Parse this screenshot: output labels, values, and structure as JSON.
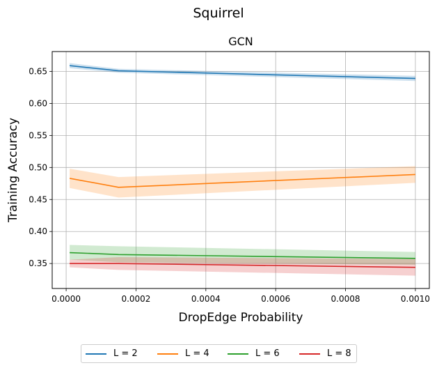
{
  "suptitle": "Squirrel",
  "chart_data": {
    "type": "line",
    "title": "GCN",
    "xlabel": "DropEdge Probability",
    "ylabel": "Training Accuracy",
    "xlim": [
      -4e-05,
      0.00104
    ],
    "ylim": [
      0.311,
      0.681
    ],
    "xticks": [
      0.0,
      0.0002,
      0.0004,
      0.0006,
      0.0008,
      0.001
    ],
    "xtick_labels": [
      "0.0000",
      "0.0002",
      "0.0004",
      "0.0006",
      "0.0008",
      "0.0010"
    ],
    "yticks": [
      0.35,
      0.4,
      0.45,
      0.5,
      0.55,
      0.6,
      0.65
    ],
    "ytick_labels": [
      "0.35",
      "0.40",
      "0.45",
      "0.50",
      "0.55",
      "0.60",
      "0.65"
    ],
    "grid": true,
    "legend_position": "bottom-center",
    "x": [
      1e-05,
      0.00015,
      0.001
    ],
    "series": [
      {
        "name": "L = 2",
        "color": "#1f77b4",
        "values": [
          0.659,
          0.651,
          0.639
        ],
        "lower": [
          0.655,
          0.648,
          0.635
        ],
        "upper": [
          0.663,
          0.654,
          0.643
        ]
      },
      {
        "name": "L = 4",
        "color": "#ff7f0e",
        "values": [
          0.483,
          0.469,
          0.489
        ],
        "lower": [
          0.468,
          0.453,
          0.476
        ],
        "upper": [
          0.498,
          0.485,
          0.502
        ]
      },
      {
        "name": "L = 6",
        "color": "#2ca02c",
        "values": [
          0.367,
          0.364,
          0.358
        ],
        "lower": [
          0.356,
          0.352,
          0.348
        ],
        "upper": [
          0.379,
          0.377,
          0.368
        ]
      },
      {
        "name": "L = 8",
        "color": "#d62728",
        "values": [
          0.35,
          0.35,
          0.344
        ],
        "lower": [
          0.344,
          0.34,
          0.331
        ],
        "upper": [
          0.356,
          0.36,
          0.357
        ]
      }
    ]
  }
}
